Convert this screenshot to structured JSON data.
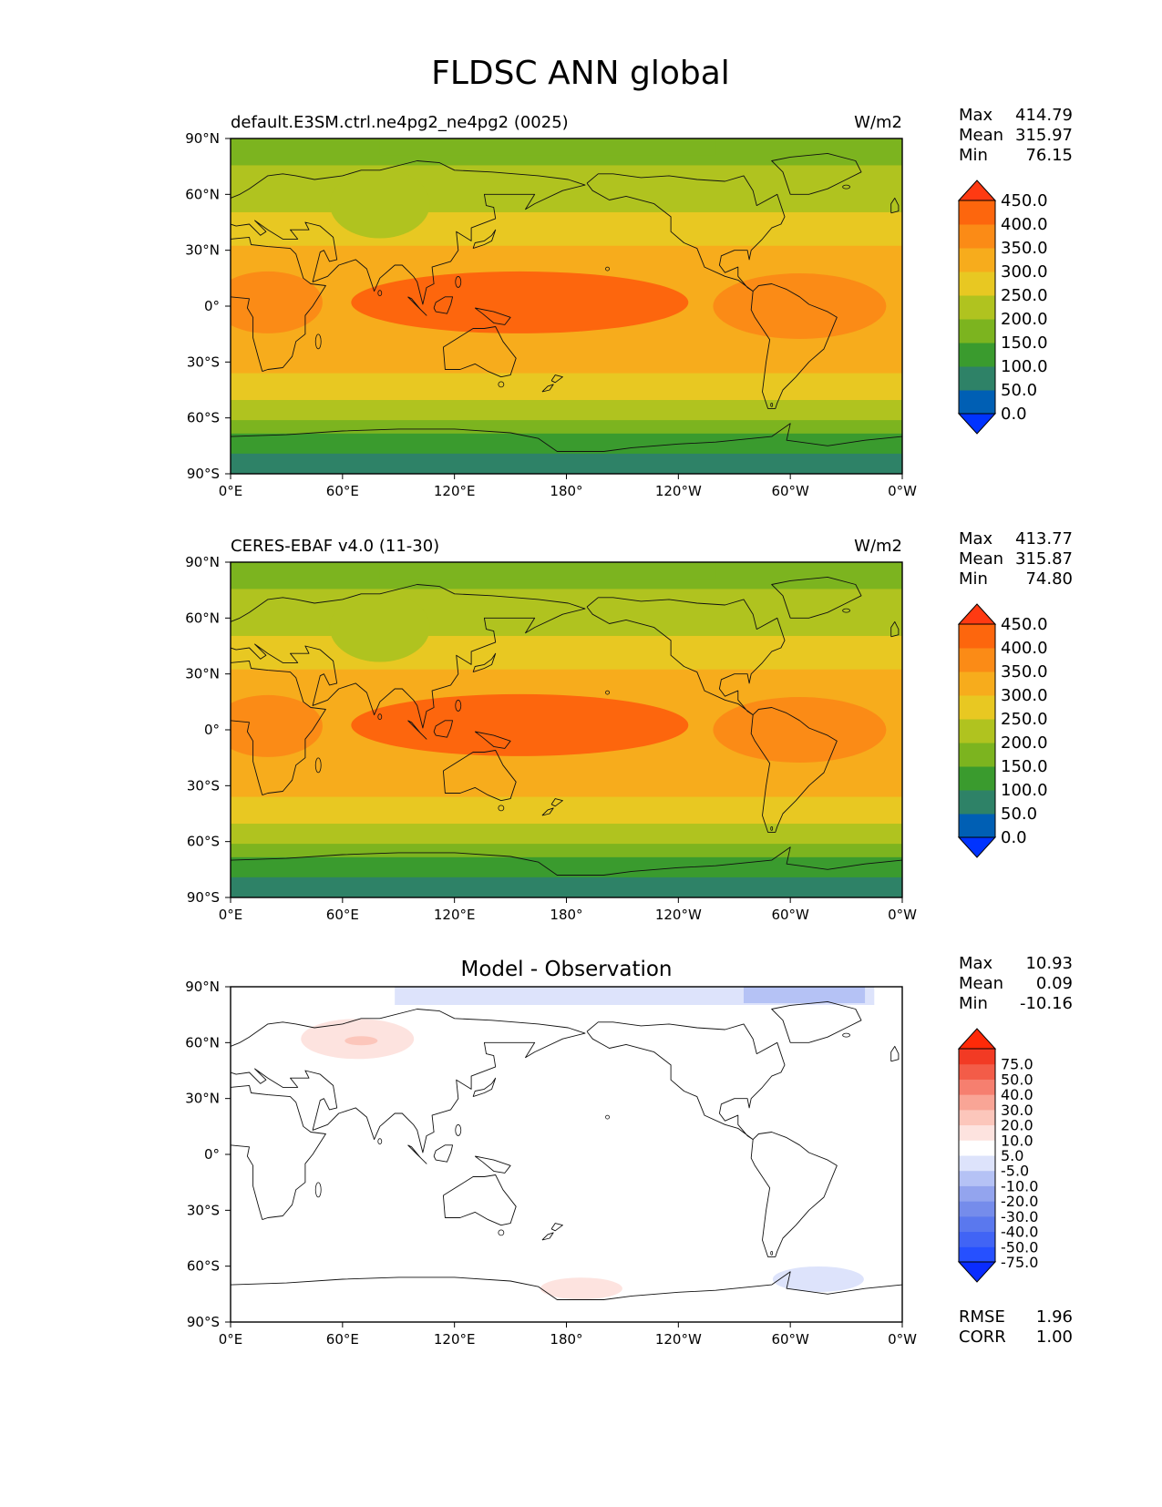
{
  "figure": {
    "title": "FLDSC ANN global"
  },
  "chart_data": [
    {
      "type": "heatmap",
      "panel": "test",
      "title_left": "default.E3SM.ctrl.ne4pg2_ne4pg2 (0025)",
      "title_right": "W/m2",
      "title_center": "",
      "xlim": [
        0,
        360
      ],
      "ylim": [
        -90,
        90
      ],
      "x_ticks": [
        "0°E",
        "60°E",
        "120°E",
        "180°",
        "120°W",
        "60°W",
        "0°W"
      ],
      "y_ticks": [
        "90°N",
        "60°N",
        "30°N",
        "0°",
        "30°S",
        "60°S",
        "90°S"
      ],
      "stats": {
        "labels": [
          "Max",
          "Mean",
          "Min"
        ],
        "values": [
          "414.79",
          "315.97",
          "76.15"
        ]
      },
      "colorbar": {
        "levels": [
          "0.0",
          "50.0",
          "100.0",
          "150.0",
          "200.0",
          "250.0",
          "300.0",
          "350.0",
          "400.0",
          "450.0"
        ],
        "colors": [
          "#0033ff",
          "#005fb4",
          "#2e8267",
          "#3a9b2e",
          "#7cb41f",
          "#b0c31f",
          "#e8c822",
          "#f7ac1c",
          "#fb8b16",
          "#fd660d",
          "#ff3a12"
        ]
      }
    },
    {
      "type": "heatmap",
      "panel": "reference",
      "title_left": "CERES-EBAF v4.0 (11-30)",
      "title_right": "W/m2",
      "title_center": "",
      "xlim": [
        0,
        360
      ],
      "ylim": [
        -90,
        90
      ],
      "x_ticks": [
        "0°E",
        "60°E",
        "120°E",
        "180°",
        "120°W",
        "60°W",
        "0°W"
      ],
      "y_ticks": [
        "90°N",
        "60°N",
        "30°N",
        "0°",
        "30°S",
        "60°S",
        "90°S"
      ],
      "stats": {
        "labels": [
          "Max",
          "Mean",
          "Min"
        ],
        "values": [
          "413.77",
          "315.87",
          "74.80"
        ]
      },
      "colorbar": {
        "levels": [
          "0.0",
          "50.0",
          "100.0",
          "150.0",
          "200.0",
          "250.0",
          "300.0",
          "350.0",
          "400.0",
          "450.0"
        ],
        "colors": [
          "#0033ff",
          "#005fb4",
          "#2e8267",
          "#3a9b2e",
          "#7cb41f",
          "#b0c31f",
          "#e8c822",
          "#f7ac1c",
          "#fb8b16",
          "#fd660d",
          "#ff3a12"
        ]
      }
    },
    {
      "type": "heatmap",
      "panel": "difference",
      "title_left": "",
      "title_right": "",
      "title_center": "Model - Observation",
      "xlim": [
        0,
        360
      ],
      "ylim": [
        -90,
        90
      ],
      "x_ticks": [
        "0°E",
        "60°E",
        "120°E",
        "180°",
        "120°W",
        "60°W",
        "0°W"
      ],
      "y_ticks": [
        "90°N",
        "60°N",
        "30°N",
        "0°",
        "30°S",
        "60°S",
        "90°S"
      ],
      "stats": {
        "labels": [
          "Max",
          "Mean",
          "Min"
        ],
        "values": [
          "10.93",
          "0.09",
          "-10.16"
        ]
      },
      "metrics": {
        "labels": [
          "RMSE",
          "CORR"
        ],
        "values": [
          "1.96",
          "1.00"
        ]
      },
      "colorbar": {
        "levels": [
          "-75.0",
          "-50.0",
          "-40.0",
          "-30.0",
          "-20.0",
          "-10.0",
          "-5.0",
          "5.0",
          "10.0",
          "20.0",
          "30.0",
          "40.0",
          "50.0",
          "75.0"
        ],
        "colors": [
          "#0a2cff",
          "#2650ff",
          "#4164f5",
          "#5a78ee",
          "#758ceb",
          "#93a4ee",
          "#b5c2f5",
          "#dde3fb",
          "#ffffff",
          "#fde3df",
          "#fcc6bb",
          "#f9a596",
          "#f67f6f",
          "#f35c48",
          "#f23a24",
          "#ff2a08"
        ]
      }
    }
  ]
}
